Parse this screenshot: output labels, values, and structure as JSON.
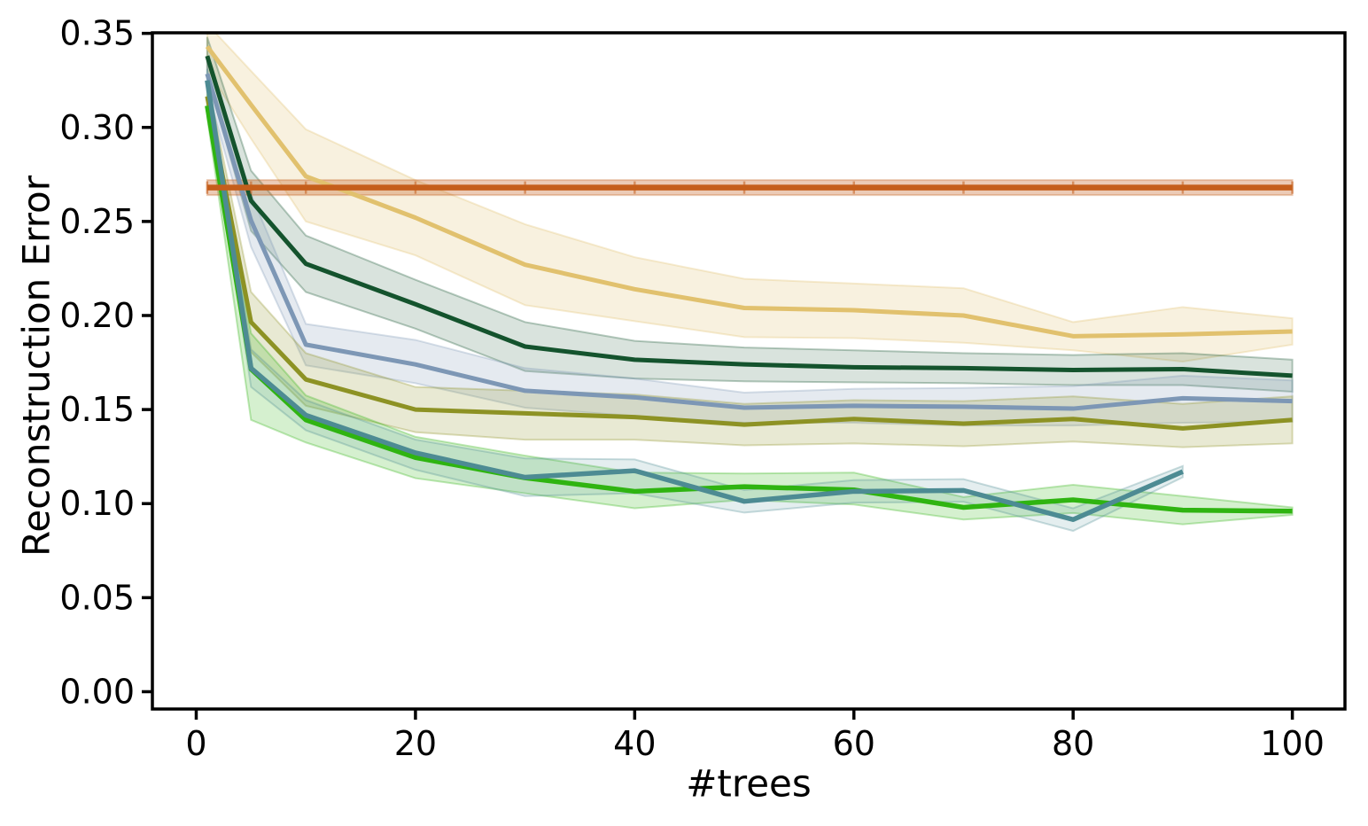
{
  "chart_data": {
    "type": "line",
    "xlabel": "#trees",
    "ylabel": "Reconstruction Error",
    "grid": false,
    "legend": "none",
    "xlim": [
      -4.0,
      104.8
    ],
    "ylim": [
      -0.0092,
      0.3503
    ],
    "xticks": {
      "values": [
        0,
        20,
        40,
        60,
        80,
        100
      ],
      "labels": [
        "0",
        "20",
        "40",
        "60",
        "80",
        "100"
      ]
    },
    "yticks": {
      "values": [
        0.0,
        0.05,
        0.1,
        0.15,
        0.2,
        0.25,
        0.3,
        0.35
      ],
      "labels": [
        "0.00",
        "0.05",
        "0.10",
        "0.15",
        "0.20",
        "0.25",
        "0.30",
        "0.35"
      ]
    },
    "series": [
      {
        "name": "sand",
        "color": "#e1c16e",
        "linewidth": 5,
        "band_alpha": 0.22,
        "x": [
          1,
          5,
          10,
          20,
          30,
          40,
          50,
          60,
          70,
          80,
          90,
          100
        ],
        "y": [
          0.343,
          0.312,
          0.274,
          0.252,
          0.227,
          0.214,
          0.204,
          0.2028,
          0.2,
          0.189,
          0.19,
          0.1915
        ],
        "band_upper": [
          0.355,
          0.33,
          0.299,
          0.272,
          0.2485,
          0.231,
          0.2195,
          0.217,
          0.2145,
          0.1965,
          0.2045,
          0.1985
        ],
        "band_lower": [
          0.331,
          0.294,
          0.25,
          0.232,
          0.2055,
          0.197,
          0.1885,
          0.188,
          0.1855,
          0.1815,
          0.1755,
          0.1845
        ]
      },
      {
        "name": "dark-green",
        "color": "#14532d",
        "linewidth": 5,
        "band_alpha": 0.16,
        "x": [
          1,
          5,
          10,
          20,
          30,
          40,
          50,
          60,
          70,
          80,
          90,
          100
        ],
        "y": [
          0.338,
          0.261,
          0.2275,
          0.206,
          0.1835,
          0.1765,
          0.174,
          0.1725,
          0.172,
          0.171,
          0.1715,
          0.168
        ],
        "band_upper": [
          0.348,
          0.277,
          0.2425,
          0.219,
          0.1965,
          0.1865,
          0.183,
          0.1815,
          0.18,
          0.179,
          0.18,
          0.1765
        ],
        "band_lower": [
          0.328,
          0.245,
          0.2125,
          0.193,
          0.1705,
          0.1665,
          0.165,
          0.1645,
          0.164,
          0.163,
          0.163,
          0.1595
        ]
      },
      {
        "name": "steel-blue",
        "color": "#7d97b5",
        "linewidth": 5,
        "band_alpha": 0.2,
        "x": [
          1,
          5,
          10,
          20,
          30,
          40,
          50,
          60,
          70,
          80,
          90,
          100
        ],
        "y": [
          0.3285,
          0.2505,
          0.1845,
          0.174,
          0.16,
          0.1565,
          0.151,
          0.152,
          0.1515,
          0.1505,
          0.156,
          0.1545
        ],
        "band_upper": [
          0.3365,
          0.2645,
          0.1955,
          0.187,
          0.172,
          0.1665,
          0.159,
          0.161,
          0.1615,
          0.1625,
          0.168,
          0.1655
        ],
        "band_lower": [
          0.3205,
          0.2365,
          0.1735,
          0.164,
          0.151,
          0.1465,
          0.143,
          0.143,
          0.1415,
          0.1415,
          0.143,
          0.1435
        ]
      },
      {
        "name": "olive",
        "color": "#8d9224",
        "linewidth": 5,
        "band_alpha": 0.2,
        "x": [
          1,
          5,
          10,
          20,
          30,
          40,
          50,
          60,
          70,
          80,
          90,
          100
        ],
        "y": [
          0.3165,
          0.1965,
          0.166,
          0.15,
          0.148,
          0.146,
          0.142,
          0.145,
          0.1425,
          0.145,
          0.14,
          0.1445
        ],
        "band_upper": [
          0.3245,
          0.2125,
          0.18,
          0.162,
          0.16,
          0.158,
          0.153,
          0.155,
          0.1545,
          0.157,
          0.153,
          0.157
        ],
        "band_lower": [
          0.3085,
          0.1805,
          0.152,
          0.138,
          0.134,
          0.134,
          0.131,
          0.132,
          0.1305,
          0.133,
          0.13,
          0.132
        ]
      },
      {
        "name": "bright-green",
        "color": "#2fb411",
        "linewidth": 5.5,
        "band_alpha": 0.2,
        "x": [
          1,
          5,
          10,
          20,
          30,
          40,
          50,
          60,
          70,
          80,
          90,
          100
        ],
        "y": [
          0.3115,
          0.1715,
          0.1445,
          0.1245,
          0.1137,
          0.1065,
          0.109,
          0.1073,
          0.098,
          0.102,
          0.0965,
          0.096
        ],
        "band_upper": [
          0.3175,
          0.1905,
          0.1575,
          0.1355,
          0.1255,
          0.1165,
          0.116,
          0.1165,
          0.1035,
          0.11,
          0.104,
          0.098
        ],
        "band_lower": [
          0.3055,
          0.1445,
          0.1325,
          0.1135,
          0.1055,
          0.0975,
          0.102,
          0.0995,
          0.0915,
          0.095,
          0.089,
          0.094
        ]
      },
      {
        "name": "teal",
        "color": "#4d8b93",
        "linewidth": 5.5,
        "band_alpha": 0.15,
        "x": [
          1,
          5,
          10,
          20,
          30,
          40,
          50,
          60,
          70,
          80,
          90
        ],
        "y": [
          0.325,
          0.172,
          0.147,
          0.127,
          0.114,
          0.1175,
          0.1012,
          0.1065,
          0.107,
          0.0915,
          0.117
        ],
        "band_upper": [
          0.331,
          0.182,
          0.155,
          0.134,
          0.124,
          0.1235,
          0.1072,
          0.1125,
          0.113,
          0.0975,
          0.12
        ],
        "band_lower": [
          0.319,
          0.162,
          0.139,
          0.118,
          0.104,
          0.1055,
          0.0952,
          0.1005,
          0.101,
          0.0855,
          0.114
        ]
      },
      {
        "name": "orange-flat",
        "color": "#c55e1b",
        "linewidth": 6.5,
        "band_alpha": 0.32,
        "marker": "vtick",
        "x": [
          1,
          5,
          10,
          20,
          30,
          40,
          50,
          60,
          70,
          80,
          90,
          100
        ],
        "y": [
          0.268,
          0.268,
          0.268,
          0.268,
          0.268,
          0.268,
          0.268,
          0.268,
          0.268,
          0.268,
          0.268,
          0.268
        ],
        "band_upper": [
          0.272,
          0.272,
          0.272,
          0.272,
          0.272,
          0.272,
          0.272,
          0.272,
          0.272,
          0.272,
          0.272,
          0.272
        ],
        "band_lower": [
          0.264,
          0.264,
          0.264,
          0.264,
          0.264,
          0.264,
          0.264,
          0.264,
          0.264,
          0.264,
          0.264,
          0.264
        ]
      }
    ]
  }
}
